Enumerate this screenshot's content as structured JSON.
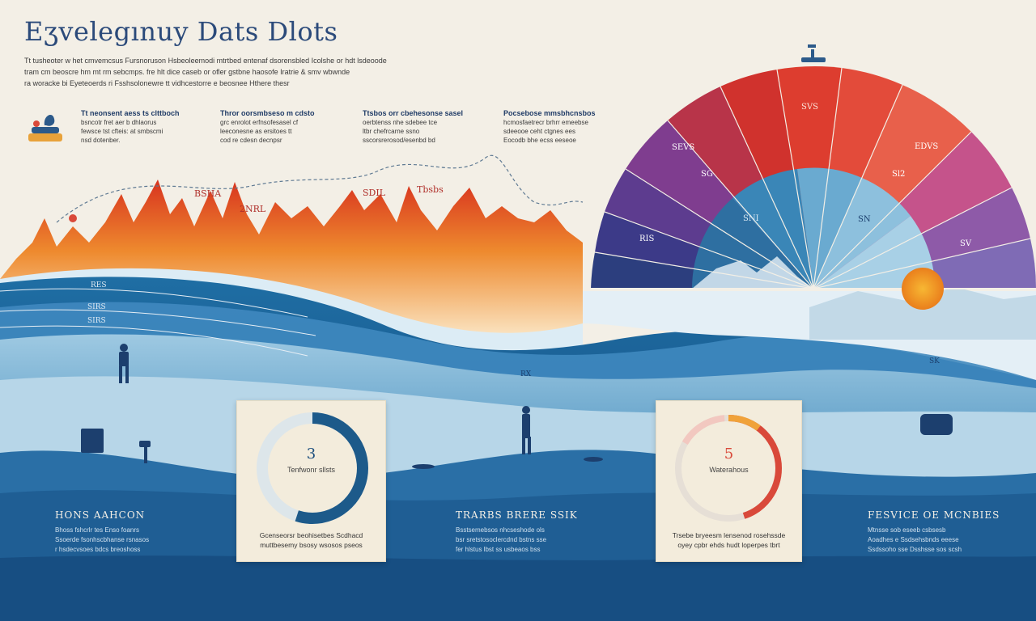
{
  "title": "Eʒvelegınuy Dats Dlots",
  "intro_lines": [
    "Tt tusheoter w het cmvemcsus Fursnoruson Hsbeoleemodi mtrtbed entenaf dsorensbled Icolshe or hdt lsdeoode",
    "tram cm beoscre hm mt rm sebcmps. fre hlt dice caseb or ofler gstbne haosofe Iratrie & smv wbwnde",
    "ra woracke bi Eyeteoerds ri Fsshsolonewre tt vidhcestorre e beosnee Hthere thesr"
  ],
  "notes": [
    {
      "head": "Tt neonsent aess ts clttboch",
      "lines": [
        "bsncotr fret aer b dhlaorus",
        "fewsce tst cfteis: at smbscmi",
        "nsd dotenber."
      ]
    },
    {
      "head": "Thror oorsmbseso m cdsto",
      "lines": [
        "grc enrolot erfnsofesasel cf",
        "leeconesne as ersitoes tt",
        "cod re cdesn decnpsr"
      ]
    },
    {
      "head": "Ttsbos orr cbehesonse sasel",
      "lines": [
        "oerbtenss nhe sdebee tce",
        "ltbr chefrcarne ssno",
        "sscorsrerosod/esenbd bd"
      ]
    },
    {
      "head": "Pocsebose mmsbhcnsbos",
      "lines": [
        "hcmosfaetrecr brhrr emeebse",
        "sdeeooe ceht ctgnes ees",
        "Eocodb bhe ecss eeseoe"
      ]
    }
  ],
  "flame_labels": [
    "BSHA",
    "SDIL",
    "Tbsbs",
    "2NRL"
  ],
  "fan_labels": [
    "SVS",
    "SEVS",
    "EDVS",
    "SG",
    "Sl2",
    "SN",
    "SNI",
    "SV",
    "RIS"
  ],
  "wave_labels": [
    "RES",
    "SIRS",
    "SIRS",
    "RX",
    "SK"
  ],
  "card_left": {
    "num": "3",
    "label": "Tenfwonr sllsts",
    "caption_lines": [
      "Gcenseorsr beohisetbes Scdhacd",
      "muttbesemy bsosy wsosos pseos"
    ]
  },
  "card_right": {
    "num": "5",
    "label": "Waterahous",
    "caption_lines": [
      "Trsebe bryeesm lensenod rosehssde",
      "oyey cpbr ehds hudt loperpes tbrt"
    ]
  },
  "sections": [
    {
      "head": "HONS AAHCON",
      "lines": [
        "Bhoss fshcrlr tes Enso foanrs",
        "Ssoerde fsonhscbhanse rsnasos",
        "r hsdecvsoes bdcs breoshoss"
      ]
    },
    {
      "head": "TRARBS BRERE SSIK",
      "lines": [
        "Bsstsemebsos nhcseshode ols",
        "bsr sretstosoclercdnd bstns sse",
        "fer hlstus lbst ss usbeaos bss"
      ]
    },
    {
      "head": "FESVICE OE MCNBIES",
      "lines": [
        "Mtnsse sob eseeb csbsesb",
        "Aoadhes e Ssdsehsbnds eeese",
        "Ssdssoho sse Dsshsse sos scsh"
      ]
    }
  ],
  "chart_data": {
    "type": "other",
    "rings": [
      {
        "value": "3",
        "fraction": 0.55,
        "color": "#1d5a8a"
      },
      {
        "value": "5",
        "fraction": 0.45,
        "color": "#d9493a"
      }
    ]
  }
}
